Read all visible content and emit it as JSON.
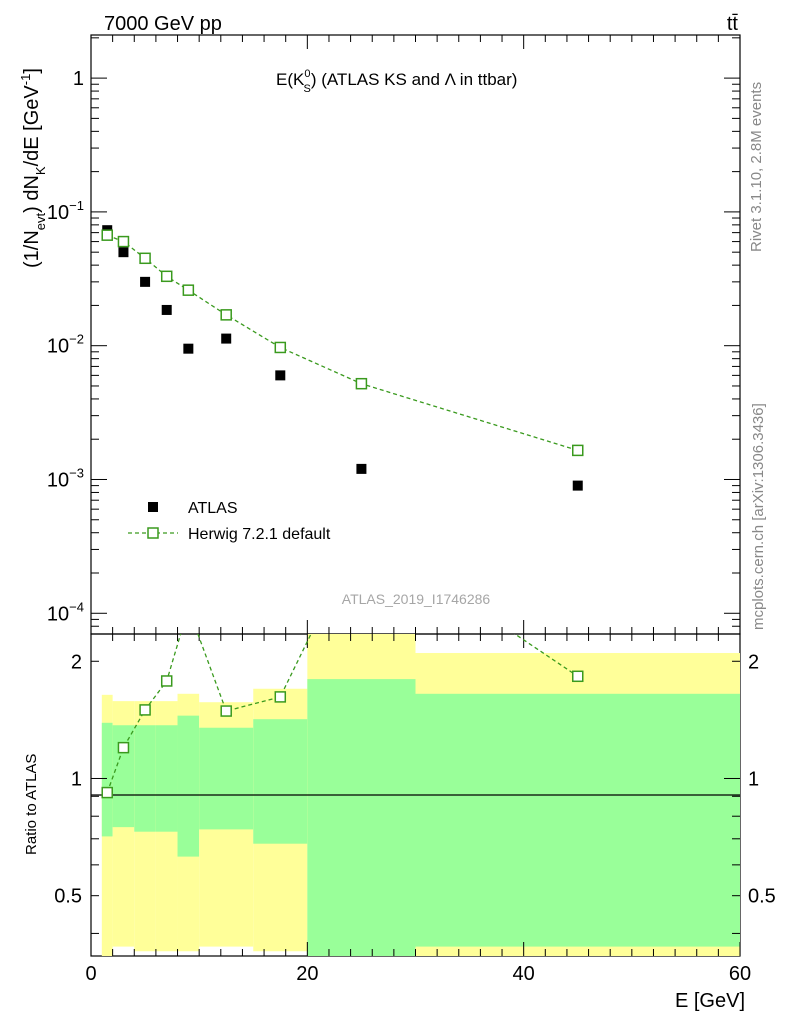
{
  "header": {
    "energy_label": "7000 GeV pp",
    "process_label": "tt̄"
  },
  "plot_title": {
    "prefix": "E(K",
    "sup": "0",
    "sub": "S",
    "suffix": ") (ATLAS KS and Λ in ttbar)"
  },
  "side_labels": {
    "rivet": "Rivet 3.1.10,  2.8M events",
    "mcplots": "mcplots.cern.ch [arXiv:1306.3436]"
  },
  "watermark": "ATLAS_2019_I1746286",
  "y_axis_label": {
    "part1": "(1/N",
    "sub1": "evt",
    "part2": ") dN",
    "sub2": "K",
    "part3": "/dE [GeV",
    "sup3": "-1",
    "part4": "]"
  },
  "ratio_label": "Ratio to ATLAS",
  "x_axis_label": "E [GeV]",
  "legend": {
    "data": "ATLAS",
    "mc": "Herwig 7.2.1 default"
  },
  "colors": {
    "data": "#000000",
    "mc": "#3a9a1e",
    "band_outer": "#ffff99",
    "band_inner": "#99ff99"
  },
  "chart_data": [
    {
      "type": "scatter",
      "yscale": "log",
      "ylim": [
        7e-05,
        2.1
      ],
      "xlim": [
        0,
        60
      ],
      "yticks": [
        {
          "value": 1,
          "base": "1",
          "exp": ""
        },
        {
          "value": 0.1,
          "base": "10",
          "exp": "−1"
        },
        {
          "value": 0.01,
          "base": "10",
          "exp": "−2"
        },
        {
          "value": 0.001,
          "base": "10",
          "exp": "−3"
        },
        {
          "value": 0.0001,
          "base": "10",
          "exp": "−4"
        }
      ],
      "series": [
        {
          "name": "ATLAS",
          "x": [
            1.5,
            3,
            5,
            7,
            9,
            12.5,
            17.5,
            25,
            45
          ],
          "y": [
            0.073,
            0.05,
            0.03,
            0.0185,
            0.0095,
            0.0113,
            0.006,
            0.0012,
            0.0009
          ]
        },
        {
          "name": "Herwig 7.2.1 default",
          "x": [
            1.5,
            3,
            5,
            7,
            9,
            12.5,
            17.5,
            25,
            45
          ],
          "y": [
            0.067,
            0.06,
            0.045,
            0.033,
            0.026,
            0.017,
            0.0097,
            0.0052,
            0.00165
          ]
        }
      ]
    },
    {
      "type": "line",
      "yscale": "log",
      "ylim": [
        0.35,
        2.35
      ],
      "xlim": [
        0,
        60
      ],
      "xticks": [
        0,
        20,
        40,
        60
      ],
      "yticks": [
        {
          "value": 0.5,
          "label": "0.5"
        },
        {
          "value": 1,
          "label": "1"
        },
        {
          "value": 2,
          "label": "2"
        }
      ],
      "bins": [
        {
          "lo": 1,
          "hi": 2,
          "inner": [
            0.71,
            1.39
          ],
          "outer": [
            0.35,
            1.64
          ]
        },
        {
          "lo": 2,
          "hi": 4,
          "inner": [
            0.75,
            1.37
          ],
          "outer": [
            0.37,
            1.58
          ]
        },
        {
          "lo": 4,
          "hi": 6,
          "inner": [
            0.73,
            1.37
          ],
          "outer": [
            0.36,
            1.58
          ]
        },
        {
          "lo": 6,
          "hi": 8,
          "inner": [
            0.73,
            1.37
          ],
          "outer": [
            0.36,
            1.58
          ]
        },
        {
          "lo": 8,
          "hi": 10,
          "inner": [
            0.63,
            1.45
          ],
          "outer": [
            0.36,
            1.65
          ]
        },
        {
          "lo": 10,
          "hi": 15,
          "inner": [
            0.74,
            1.35
          ],
          "outer": [
            0.37,
            1.57
          ]
        },
        {
          "lo": 15,
          "hi": 20,
          "inner": [
            0.68,
            1.42
          ],
          "outer": [
            0.36,
            1.7
          ]
        },
        {
          "lo": 20,
          "hi": 30,
          "inner": [
            0.35,
            1.8
          ],
          "outer": [
            0.35,
            2.35
          ]
        },
        {
          "lo": 30,
          "hi": 60,
          "inner": [
            0.37,
            1.65
          ],
          "outer": [
            0.35,
            2.1
          ]
        }
      ],
      "series": [
        {
          "name": "Herwig 7.2.1 default",
          "x": [
            1.5,
            3,
            5,
            7,
            9,
            12.5,
            17.5,
            25,
            45
          ],
          "y": [
            0.92,
            1.2,
            1.5,
            1.78,
            2.74,
            1.49,
            1.62,
            4.33,
            1.83
          ]
        }
      ]
    }
  ]
}
